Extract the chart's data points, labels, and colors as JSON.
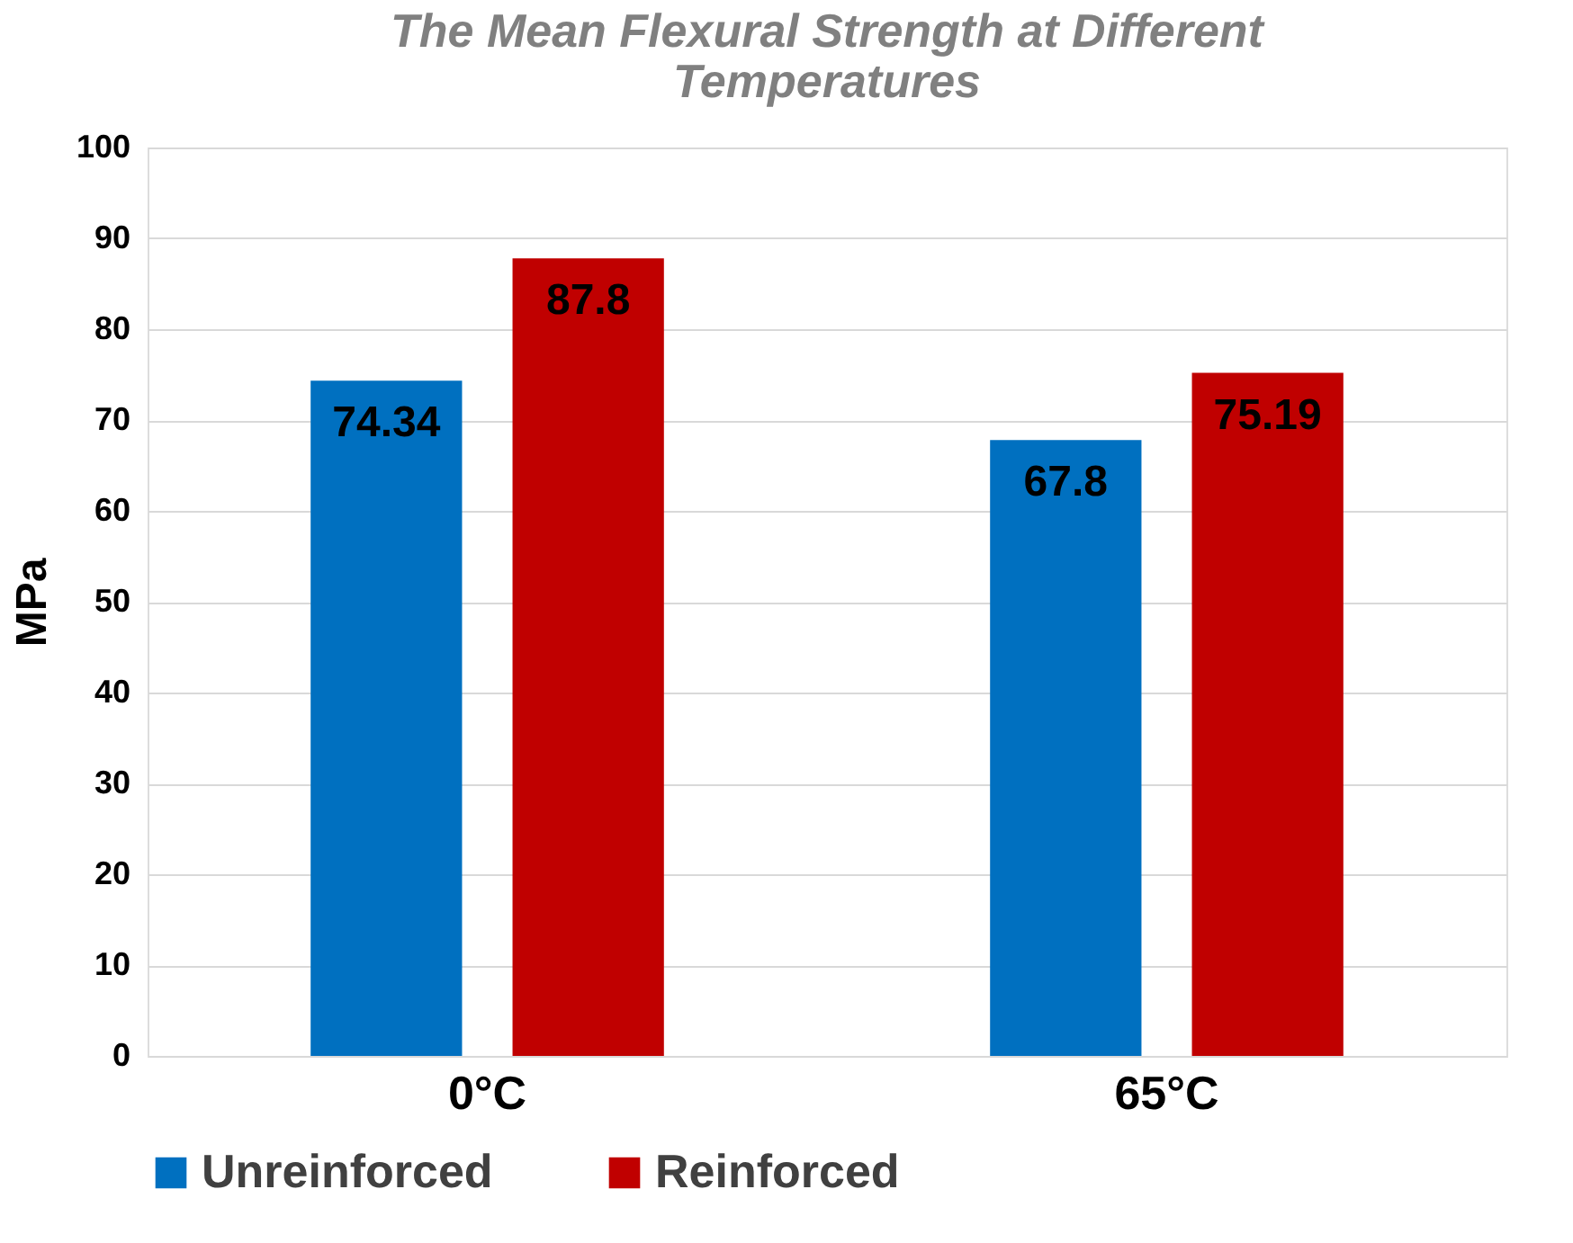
{
  "chart_data": {
    "type": "bar",
    "title": "The Mean Flexural Strength at Different Temperatures",
    "ylabel": "MPa",
    "categories": [
      "0°C",
      "65°C"
    ],
    "series": [
      {
        "name": "Unreinforced",
        "color": "#0070c0",
        "values": [
          74.34,
          67.8
        ]
      },
      {
        "name": "Reinforced",
        "color": "#c00000",
        "values": [
          87.8,
          75.19
        ]
      }
    ],
    "ylim": [
      0,
      100
    ],
    "yticks": [
      0,
      10,
      20,
      30,
      40,
      50,
      60,
      70,
      80,
      90,
      100
    ],
    "grid": "y",
    "legend": "bottom",
    "data_labels": true
  }
}
